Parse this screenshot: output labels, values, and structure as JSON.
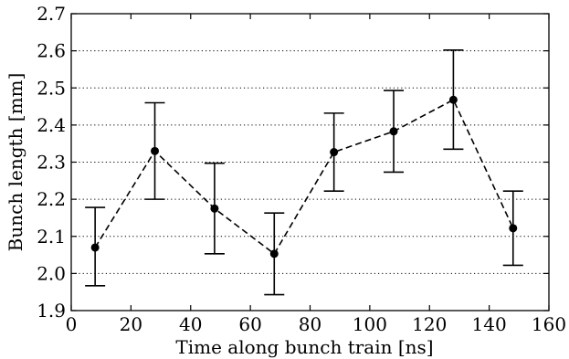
{
  "chart_data": {
    "type": "line",
    "xlabel": "Time along bunch train [ns]",
    "ylabel": "Bunch length [mm]",
    "xlim": [
      0,
      160
    ],
    "ylim": [
      1.9,
      2.7
    ],
    "xticks": [
      0,
      20,
      40,
      60,
      80,
      100,
      120,
      140,
      160
    ],
    "yticks": [
      1.9,
      2.0,
      2.1,
      2.2,
      2.3,
      2.4,
      2.5,
      2.6,
      2.7
    ],
    "xtick_labels": [
      "0",
      "20",
      "40",
      "60",
      "80",
      "100",
      "120",
      "140",
      "160"
    ],
    "ytick_labels": [
      "1.9",
      "2.0",
      "2.1",
      "2.2",
      "2.3",
      "2.4",
      "2.5",
      "2.6",
      "2.7"
    ],
    "grid": "horizontal dotted",
    "series": [
      {
        "x": [
          8,
          28,
          48,
          68,
          88,
          108,
          128,
          148
        ],
        "y": [
          2.07,
          2.33,
          2.175,
          2.053,
          2.327,
          2.383,
          2.468,
          2.122
        ],
        "yerr_low": [
          1.967,
          2.2,
          2.053,
          1.943,
          2.222,
          2.273,
          2.335,
          2.022
        ],
        "yerr_high": [
          2.178,
          2.46,
          2.297,
          2.163,
          2.432,
          2.493,
          2.602,
          2.222
        ],
        "line_style": "dashed",
        "marker": "filled-circle",
        "color": "#000000"
      }
    ]
  }
}
